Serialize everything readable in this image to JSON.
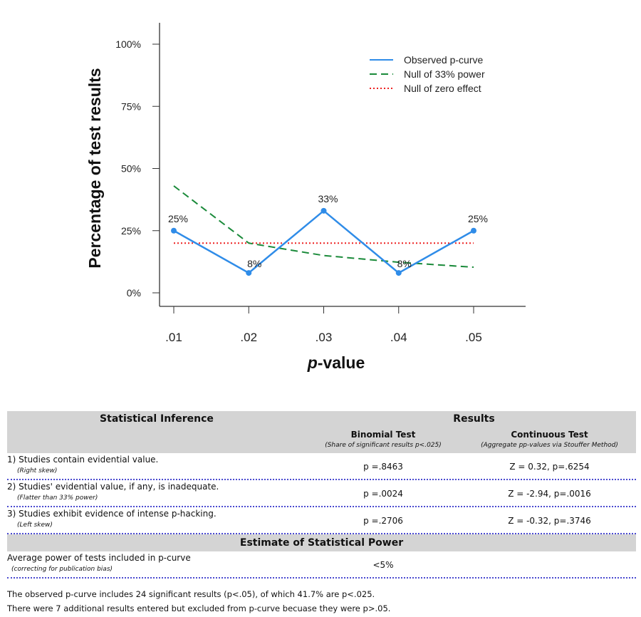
{
  "chart_data": {
    "type": "line",
    "xlabel": "p-value",
    "ylabel": "Percentage of test results",
    "x": [
      0.01,
      0.02,
      0.03,
      0.04,
      0.05
    ],
    "x_tick_labels": [
      ".01",
      ".02",
      ".03",
      ".04",
      ".05"
    ],
    "y_ticks": [
      0,
      25,
      50,
      75,
      100
    ],
    "y_tick_labels": [
      "0%",
      "25%",
      "50%",
      "75%",
      "100%"
    ],
    "ylim": [
      0,
      100
    ],
    "legend_placement": "top-right",
    "series": [
      {
        "name": "Observed p-curve",
        "color": "#2f8ce8",
        "style": "solid",
        "values": [
          25,
          8,
          33,
          8,
          25
        ],
        "labels": [
          "25%",
          "8%",
          "33%",
          "8%",
          "25%"
        ]
      },
      {
        "name": "Null of 33% power",
        "color": "#1a8a3a",
        "style": "dashed",
        "values": [
          43,
          20,
          15,
          12.3,
          10.3
        ]
      },
      {
        "name": "Null of zero effect",
        "color": "#ee2222",
        "style": "dotted",
        "values": [
          20,
          20,
          20,
          20,
          20
        ]
      }
    ]
  },
  "table": {
    "header": {
      "inference": "Statistical Inference",
      "results": "Results",
      "binomial": "Binomial Test",
      "binomial_note": "(Share of significant results p<.025)",
      "continuous": "Continuous Test",
      "continuous_note": "(Aggregate pp-values via Stouffer Method)"
    },
    "rows": [
      {
        "label": "1) Studies contain evidential value.",
        "note": "(Right skew)",
        "binomial": "p =.8463",
        "continuous": "Z = 0.32, p=.6254"
      },
      {
        "label": "2) Studies' evidential value, if any, is inadequate.",
        "note": "(Flatter than 33% power)",
        "binomial": "p =.0024",
        "continuous": "Z = -2.94, p=.0016"
      },
      {
        "label": "3) Studies exhibit evidence of intense p-hacking.",
        "note": "(Left skew)",
        "binomial": "p =.2706",
        "continuous": "Z = -0.32, p=.3746"
      }
    ],
    "power_header": "Estimate of Statistical Power",
    "power_row": {
      "label": "Average power of tests included in p-curve",
      "note": "(correcting for publication bias)",
      "value": "<5%"
    }
  },
  "footnotes": [
    "The observed p-curve includes 24 significant results (p<.05), of which 41.7% are p<.025.",
    "There were 7 additional results entered but excluded from p-curve becuase they were p>.05."
  ]
}
